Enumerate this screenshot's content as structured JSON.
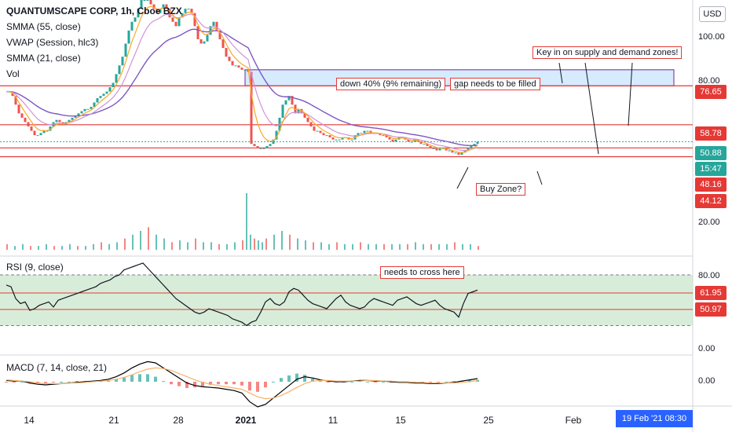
{
  "header": {
    "title": "QUANTUMSCAPE CORP, 1h, Cboe BZX",
    "indicators": [
      "SMMA (55, close)",
      "VWAP (Session, hlc3)",
      "SMMA (21, close)",
      "Vol"
    ],
    "currency": "USD"
  },
  "colors": {
    "up": "#26a69a",
    "down": "#ef5350",
    "smma55": "#7e57c2",
    "vwap": "#ce93d8",
    "smma21": "#f9a825",
    "level_line": "#e53935",
    "rsi_zone": "#c8e6c9",
    "macd_line": "#000000",
    "signal_line": "#f6b26b",
    "gap_fill": "#bbdefb"
  },
  "annotations": {
    "key_zones": "Key in on supply and demand zones!",
    "down_40": "down 40% (9% remaining)",
    "gap": "gap needs to be filled",
    "buy_zone": "Buy Zone?",
    "rsi_cross": "needs to cross here"
  },
  "price_tags": [
    {
      "label": "76.65",
      "color": "#e53935"
    },
    {
      "label": "58.78",
      "color": "#e53935"
    },
    {
      "label": "50.88",
      "color": "#26a69a"
    },
    {
      "label": "15:47",
      "color": "#26a69a"
    },
    {
      "label": "48.16",
      "color": "#e53935"
    },
    {
      "label": "44.12",
      "color": "#e53935"
    }
  ],
  "rsi": {
    "title": "RSI (9, close)",
    "tags": [
      {
        "label": "61.95",
        "color": "#e53935"
      },
      {
        "label": "50.97",
        "color": "#e53935"
      }
    ]
  },
  "macd": {
    "title": "MACD (7, 14, close, 21)"
  },
  "x_axis": {
    "date_box": "19 Feb '21   08:30"
  },
  "chart_data": {
    "type": "line",
    "title": "QUANTUMSCAPE CORP, 1h, Cboe BZX",
    "price_axis": {
      "ticks": [
        "100.00",
        "80.00",
        "20.00"
      ],
      "ylim": [
        0,
        116
      ]
    },
    "rsi_axis": {
      "ticks": [
        "80.00",
        "0.00"
      ],
      "ylim": [
        0,
        100
      ]
    },
    "macd_axis": {
      "ticks": [
        "0.00"
      ]
    },
    "x_ticks": [
      "14",
      "21",
      "28",
      "2021",
      "11",
      "15",
      "25",
      "Feb"
    ],
    "levels": [
      76.65,
      58.78,
      48.16,
      44.12
    ],
    "gap_zone": [
      76.65,
      84
    ],
    "close": {
      "x": [
        0,
        4,
        8,
        12,
        16,
        20,
        24,
        28,
        32,
        36,
        40,
        44,
        48,
        52,
        56,
        60,
        64,
        68,
        72,
        76,
        80,
        84,
        88,
        92,
        96,
        100,
        104,
        108,
        112,
        116,
        120,
        124,
        128,
        132,
        136,
        140,
        144,
        148,
        152,
        156,
        160,
        164,
        168,
        172,
        176,
        180,
        184,
        188,
        192,
        196,
        200,
        204,
        208,
        212,
        216,
        220,
        224,
        228,
        232,
        236,
        240,
        244,
        248,
        252,
        256,
        260,
        264,
        268,
        272,
        276,
        280,
        284,
        288,
        292,
        296,
        300,
        304,
        308,
        312,
        316,
        320,
        324,
        328,
        332,
        336,
        340,
        344,
        348,
        352,
        356,
        360,
        364,
        368,
        372,
        376,
        380,
        384,
        388,
        392,
        396,
        400,
        404,
        408,
        412,
        416,
        420,
        424,
        428,
        432,
        436,
        440,
        444,
        448,
        452,
        456,
        460,
        464,
        468,
        472,
        476,
        480,
        484,
        488,
        492,
        496,
        500,
        504,
        508,
        512,
        516,
        520,
        524,
        528,
        532,
        536,
        540,
        544,
        548,
        552,
        556,
        560,
        564,
        568,
        572,
        576,
        580,
        584,
        588,
        592,
        596,
        600
      ],
      "y": [
        74,
        74,
        72,
        68,
        64,
        62,
        60,
        58,
        56,
        54,
        54,
        55,
        56,
        56,
        58,
        60,
        61,
        60,
        59,
        60,
        61,
        62,
        63,
        64,
        65,
        66,
        66,
        67,
        69,
        71,
        72,
        73,
        74,
        76,
        78,
        82,
        86,
        90,
        96,
        102,
        106,
        108,
        112,
        116,
        116,
        116,
        114,
        112,
        110,
        112,
        114,
        112,
        108,
        106,
        104,
        108,
        110,
        112,
        112,
        110,
        104,
        98,
        96,
        97,
        100,
        104,
        106,
        102,
        98,
        94,
        90,
        88,
        86,
        86,
        85,
        84,
        84,
        83,
        50,
        49,
        48,
        48,
        48,
        49,
        50,
        52,
        56,
        62,
        68,
        70,
        72,
        68,
        64,
        66,
        64,
        62,
        60,
        58,
        56,
        56,
        55,
        54,
        54,
        53,
        52,
        52,
        52,
        53,
        53,
        52,
        52,
        54,
        55,
        55,
        56,
        56,
        55,
        55,
        55,
        54,
        54,
        53,
        52,
        51,
        52,
        53,
        53,
        52,
        51,
        51,
        52,
        51,
        50,
        50,
        49,
        48,
        48,
        47,
        48,
        48,
        47,
        47,
        46,
        46,
        45,
        46,
        47,
        48,
        49,
        50,
        51
      ]
    },
    "rsi_series": {
      "x": [
        0,
        6,
        12,
        18,
        24,
        30,
        36,
        42,
        48,
        54,
        60,
        66,
        72,
        78,
        84,
        90,
        96,
        102,
        108,
        114,
        120,
        126,
        132,
        138,
        144,
        150,
        156,
        162,
        168,
        174,
        180,
        186,
        192,
        198,
        204,
        210,
        216,
        222,
        228,
        234,
        240,
        246,
        252,
        258,
        264,
        270,
        276,
        282,
        288,
        294,
        300,
        306,
        312,
        318,
        324,
        330,
        336,
        342,
        348,
        354,
        360,
        366,
        372,
        378,
        384,
        390,
        396,
        402,
        408,
        414,
        420,
        426,
        432,
        438,
        444,
        450,
        456,
        462,
        468,
        474,
        480,
        486,
        492,
        498,
        504,
        510,
        516,
        522,
        528,
        534,
        540,
        546,
        552,
        558,
        564,
        570,
        576,
        582,
        588,
        594,
        600
      ],
      "y": [
        68,
        66,
        52,
        46,
        48,
        38,
        40,
        44,
        46,
        48,
        42,
        50,
        52,
        54,
        56,
        58,
        60,
        62,
        64,
        66,
        70,
        72,
        74,
        78,
        80,
        86,
        88,
        90,
        92,
        94,
        88,
        82,
        76,
        70,
        64,
        58,
        52,
        48,
        44,
        40,
        36,
        34,
        36,
        40,
        38,
        36,
        34,
        32,
        28,
        26,
        24,
        20,
        24,
        26,
        36,
        48,
        52,
        46,
        44,
        48,
        60,
        64,
        62,
        56,
        50,
        46,
        44,
        42,
        40,
        46,
        52,
        56,
        48,
        44,
        42,
        40,
        42,
        48,
        52,
        50,
        48,
        46,
        44,
        50,
        52,
        54,
        50,
        46,
        44,
        46,
        48,
        50,
        44,
        40,
        38,
        36,
        30,
        46,
        58,
        60,
        62
      ]
    },
    "macd_series": {
      "x": [
        0,
        10,
        20,
        30,
        40,
        50,
        60,
        70,
        80,
        90,
        100,
        110,
        120,
        130,
        140,
        150,
        160,
        170,
        180,
        190,
        200,
        210,
        220,
        230,
        240,
        250,
        260,
        270,
        280,
        290,
        300,
        310,
        320,
        330,
        340,
        350,
        360,
        370,
        380,
        390,
        400,
        410,
        420,
        430,
        440,
        450,
        460,
        470,
        480,
        490,
        500,
        510,
        520,
        530,
        540,
        550,
        560,
        570,
        580,
        590,
        600
      ],
      "macd": [
        0.2,
        0.1,
        0.1,
        -0.2,
        -0.4,
        -0.5,
        -0.4,
        -0.3,
        -0.2,
        -0.1,
        0.0,
        0.1,
        0.2,
        0.4,
        0.8,
        1.4,
        2.2,
        2.8,
        3.2,
        3.0,
        2.2,
        1.4,
        0.6,
        -0.2,
        -0.6,
        -0.8,
        -0.9,
        -1.0,
        -1.2,
        -1.4,
        -1.8,
        -3.2,
        -4.0,
        -3.6,
        -2.6,
        -1.6,
        -0.6,
        0.4,
        0.8,
        0.6,
        0.3,
        0.1,
        0.0,
        0.0,
        0.1,
        0.2,
        0.2,
        0.1,
        0.1,
        0.0,
        -0.1,
        -0.1,
        -0.2,
        -0.2,
        -0.3,
        -0.3,
        -0.2,
        -0.1,
        0.1,
        0.3,
        0.5
      ],
      "signal": [
        0.3,
        0.2,
        0.1,
        0.0,
        -0.2,
        -0.3,
        -0.3,
        -0.3,
        -0.2,
        -0.2,
        -0.1,
        0.0,
        0.1,
        0.2,
        0.4,
        0.7,
        1.1,
        1.6,
        2.0,
        2.2,
        2.1,
        1.8,
        1.3,
        0.8,
        0.3,
        -0.1,
        -0.4,
        -0.6,
        -0.8,
        -1.0,
        -1.2,
        -1.8,
        -2.4,
        -2.7,
        -2.6,
        -2.2,
        -1.6,
        -0.9,
        -0.3,
        0.1,
        0.2,
        0.2,
        0.1,
        0.1,
        0.1,
        0.1,
        0.2,
        0.2,
        0.1,
        0.1,
        0.0,
        0.0,
        -0.1,
        -0.1,
        -0.2,
        -0.2,
        -0.2,
        -0.2,
        -0.1,
        0.0,
        0.2
      ]
    },
    "volume": {
      "x": [
        0,
        10,
        20,
        30,
        40,
        50,
        60,
        70,
        80,
        90,
        100,
        110,
        120,
        130,
        140,
        150,
        160,
        170,
        180,
        190,
        200,
        210,
        220,
        230,
        240,
        250,
        260,
        270,
        280,
        290,
        300,
        305,
        310,
        315,
        320,
        325,
        330,
        340,
        350,
        360,
        370,
        380,
        390,
        400,
        410,
        420,
        430,
        440,
        450,
        460,
        470,
        480,
        490,
        500,
        510,
        520,
        530,
        540,
        550,
        560,
        570,
        580,
        590,
        600
      ],
      "v": [
        3,
        2,
        3,
        2,
        2,
        3,
        2,
        2,
        3,
        2,
        2,
        3,
        4,
        3,
        4,
        6,
        8,
        10,
        12,
        8,
        6,
        4,
        5,
        4,
        6,
        4,
        4,
        3,
        3,
        4,
        5,
        30,
        8,
        6,
        5,
        4,
        6,
        8,
        10,
        8,
        6,
        5,
        4,
        4,
        3,
        4,
        3,
        3,
        4,
        3,
        3,
        3,
        3,
        3,
        3,
        4,
        3,
        3,
        3,
        3,
        4,
        3,
        3,
        2
      ]
    }
  }
}
